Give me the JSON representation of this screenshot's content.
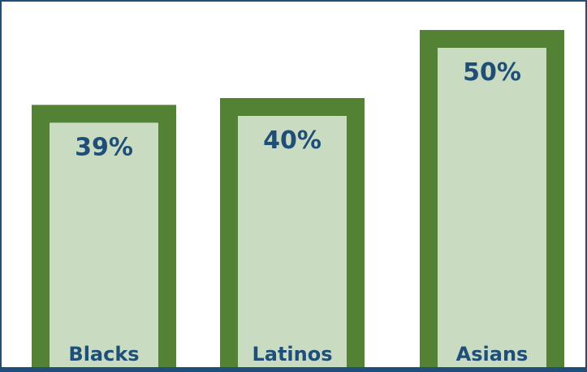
{
  "chart_data": {
    "type": "bar",
    "categories": [
      "Blacks",
      "Latinos",
      "Asians"
    ],
    "values": [
      39,
      40,
      50
    ],
    "value_labels": [
      "39%",
      "40%",
      "50%"
    ],
    "title": "",
    "xlabel": "",
    "ylabel": "",
    "colors": {
      "bar_border": "#548235",
      "bar_fill": "#c9dcc1",
      "text": "#1f4e79",
      "frame": "#1f4e79"
    }
  }
}
